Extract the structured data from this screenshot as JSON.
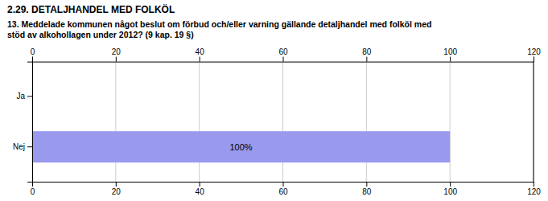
{
  "chart_data": {
    "type": "bar",
    "orientation": "horizontal",
    "title": "2.29. DETALJHANDEL MED FOLKÖL",
    "subtitle": "13. Meddelade kommunen något beslut om förbud och/eller varning gällande detaljhandel med folköl med\nstöd av alkohollagen under 2012? (9 kap. 19 §)",
    "categories": [
      "Ja",
      "Nej"
    ],
    "values": [
      0,
      100
    ],
    "value_labels": [
      null,
      "100%"
    ],
    "data_labels": true,
    "color": "#9999ee",
    "xlim": [
      0,
      120
    ],
    "xticks": [
      0,
      20,
      40,
      60,
      80,
      100,
      120
    ],
    "grid": true
  }
}
